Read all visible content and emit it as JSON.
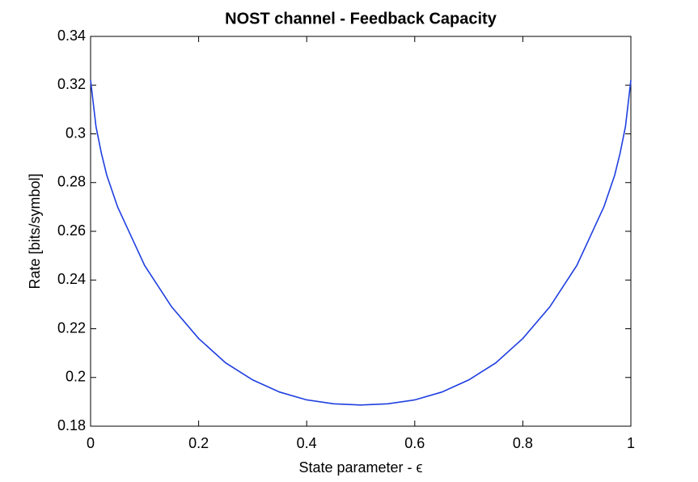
{
  "chart_data": {
    "type": "line",
    "title": "NOST channel - Feedback Capacity",
    "xlabel": "State parameter - ϵ",
    "ylabel": "Rate [bits/symbol]",
    "x": [
      0,
      0.01,
      0.02,
      0.03,
      0.05,
      0.075,
      0.1,
      0.15,
      0.2,
      0.25,
      0.3,
      0.35,
      0.4,
      0.45,
      0.5,
      0.55,
      0.6,
      0.65,
      0.7,
      0.75,
      0.8,
      0.85,
      0.9,
      0.925,
      0.95,
      0.97,
      0.98,
      0.99,
      1
    ],
    "series": [
      {
        "name": "Feedback capacity",
        "color": "#1f3fe0",
        "values": [
          0.322,
          0.303,
          0.292,
          0.283,
          0.27,
          0.258,
          0.246,
          0.229,
          0.216,
          0.206,
          0.199,
          0.194,
          0.1908,
          0.1892,
          0.1887,
          0.1892,
          0.1908,
          0.194,
          0.199,
          0.206,
          0.216,
          0.229,
          0.246,
          0.258,
          0.27,
          0.283,
          0.292,
          0.303,
          0.322
        ]
      }
    ],
    "xlim": [
      0,
      1
    ],
    "xticks": [
      0,
      0.2,
      0.4,
      0.6,
      0.8,
      1
    ],
    "ylim": [
      0.18,
      0.34
    ],
    "yticks": [
      0.18,
      0.2,
      0.22,
      0.24,
      0.26,
      0.28,
      0.3,
      0.32,
      0.34
    ],
    "grid": false
  }
}
